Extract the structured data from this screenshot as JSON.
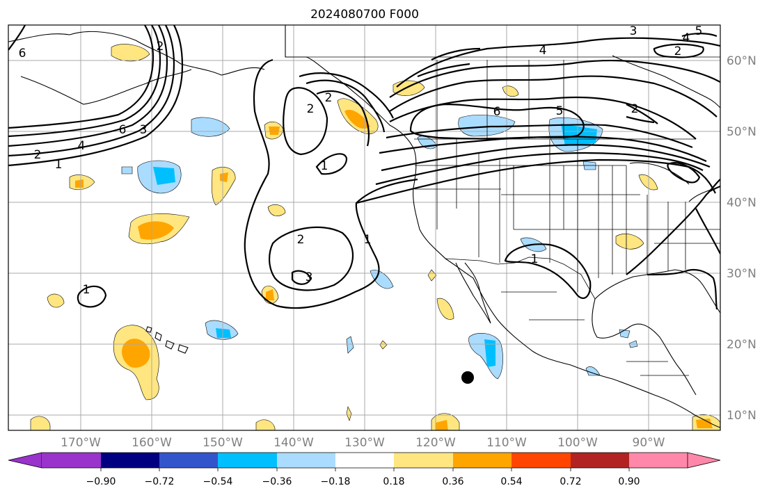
{
  "title": "2024080700 F000",
  "map": {
    "lon_range": [
      -180,
      -80
    ],
    "lat_range": [
      8,
      65
    ],
    "lon_ticks": [
      "170°W",
      "160°W",
      "150°W",
      "140°W",
      "130°W",
      "120°W",
      "110°W",
      "100°W",
      "90°W"
    ],
    "lat_ticks": [
      "60°N",
      "50°N",
      "40°N",
      "30°N",
      "20°N",
      "10°N"
    ],
    "grid": true
  },
  "colorbar": {
    "ticks": [
      "−0.90",
      "−0.72",
      "−0.54",
      "−0.36",
      "−0.18",
      "0.18",
      "0.36",
      "0.54",
      "0.72",
      "0.90"
    ],
    "colors": [
      "#9933cc",
      "#000080",
      "#3355cc",
      "#00bfff",
      "#aadcff",
      "#ffffff",
      "#ffe680",
      "#ffa500",
      "#ff4500",
      "#b22222",
      "#ff88aa"
    ]
  },
  "contour_labels": [
    "6",
    "2",
    "4",
    "2",
    "1",
    "6",
    "3",
    "2",
    "1",
    "2",
    "1",
    "2",
    "3",
    "1",
    "1",
    "4",
    "2",
    "6",
    "5",
    "2",
    "3",
    "4",
    "5"
  ],
  "marker": {
    "label": "storm-center",
    "color": "#000000"
  }
}
